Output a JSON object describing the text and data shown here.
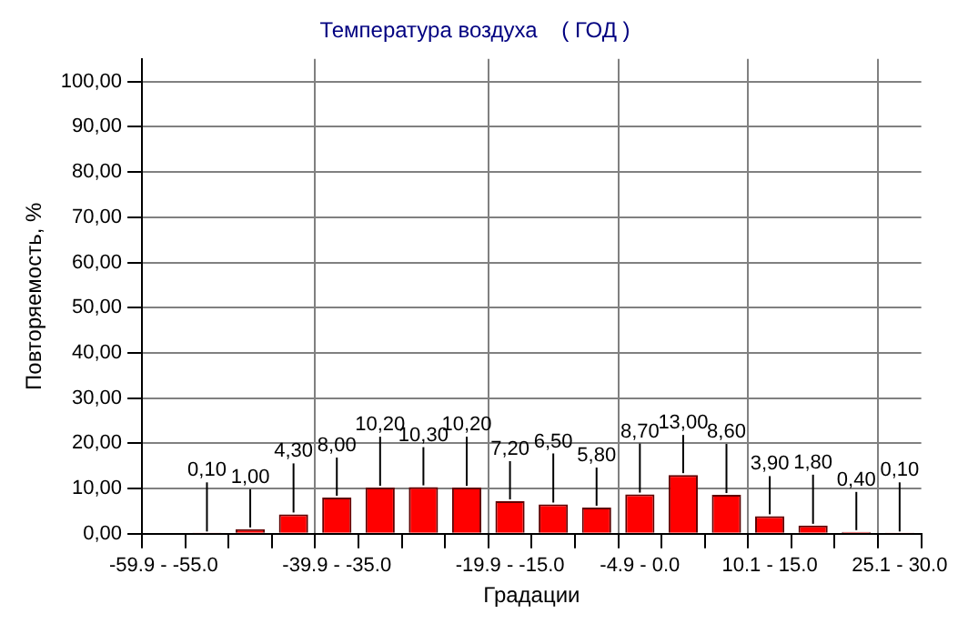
{
  "chart_data": {
    "type": "bar",
    "title": "Температура воздуха    ( ГОД )",
    "xlabel": "Градации",
    "ylabel": "Повторяемость, %",
    "categories": [
      "-59.9 - -55.0",
      null,
      null,
      null,
      "-39.9 - -35.0",
      null,
      null,
      null,
      "-19.9 - -15.0",
      null,
      null,
      "-4.9 - 0.0",
      null,
      null,
      "10.1 - 15.0",
      null,
      null,
      "25.1 - 30.0"
    ],
    "values": [
      0,
      0.1,
      1,
      4.3,
      8,
      10.2,
      10.3,
      10.2,
      7.2,
      6.5,
      5.8,
      8.7,
      13,
      8.6,
      3.9,
      1.8,
      0.4,
      0.1
    ],
    "value_labels": [
      null,
      "0,10",
      "1,00",
      "4,30",
      "8,00",
      "10,20",
      "10,30",
      "10,20",
      "7,20",
      "6,50",
      "5,80",
      "8,70",
      "13,00",
      "8,60",
      "3,90",
      "1,80",
      "0,40",
      "0,10"
    ],
    "color": "#ff0000",
    "ylim": [
      0,
      105
    ],
    "yticks": [
      {
        "value": 0,
        "label": "0,00"
      },
      {
        "value": 10,
        "label": "10,00"
      },
      {
        "value": 20,
        "label": "20,00"
      },
      {
        "value": 30,
        "label": "30,00"
      },
      {
        "value": 40,
        "label": "40,00"
      },
      {
        "value": 50,
        "label": "50,00"
      },
      {
        "value": 60,
        "label": "60,00"
      },
      {
        "value": 70,
        "label": "70,00"
      },
      {
        "value": 80,
        "label": "80,00"
      },
      {
        "value": 90,
        "label": "90,00"
      },
      {
        "value": 100,
        "label": "100,00"
      }
    ],
    "grid": true,
    "legend": false
  }
}
